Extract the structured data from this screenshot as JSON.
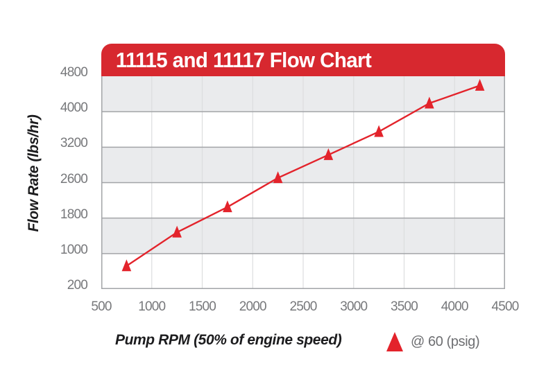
{
  "banner": {
    "title": "11115 and 11117 Flow Chart",
    "bg_color": "#d7282f",
    "text_color": "#ffffff"
  },
  "chart_data": {
    "type": "line",
    "title": "11115 and 11117 Flow Chart",
    "xlabel": "Pump RPM (50% of engine speed)",
    "ylabel": "Flow Rate (lbs/hr)",
    "x_ticks": [
      500,
      1000,
      1500,
      2000,
      2500,
      3000,
      3500,
      4000,
      4500
    ],
    "y_ticks": [
      4800,
      4000,
      3200,
      2600,
      1800,
      1000,
      200
    ],
    "xlim": [
      500,
      4500
    ],
    "ylim": [
      200,
      4800
    ],
    "grid": "banded-horizontal-with-vertical-gridlines",
    "legend_position": "bottom-right",
    "series": [
      {
        "name": "@ 60 (psig)",
        "marker": "triangle",
        "color": "#e3232b",
        "points": [
          [
            750,
            720
          ],
          [
            1250,
            1480
          ],
          [
            1750,
            2050
          ],
          [
            2250,
            2680
          ],
          [
            2750,
            3070
          ],
          [
            3250,
            3550
          ],
          [
            3750,
            4190
          ],
          [
            4250,
            4590
          ]
        ]
      }
    ],
    "colors": {
      "band_fill": "#eaebed",
      "band_alt_fill": "#ffffff",
      "h_gridline": "#a2a4a7",
      "v_gridline": "#dcddde",
      "frame": "#a2a4a7",
      "tick_label": "#77787b"
    }
  },
  "legend": {
    "marker_icon": "triangle-icon",
    "marker_color": "#e3232b",
    "label": "@ 60 (psig)"
  }
}
